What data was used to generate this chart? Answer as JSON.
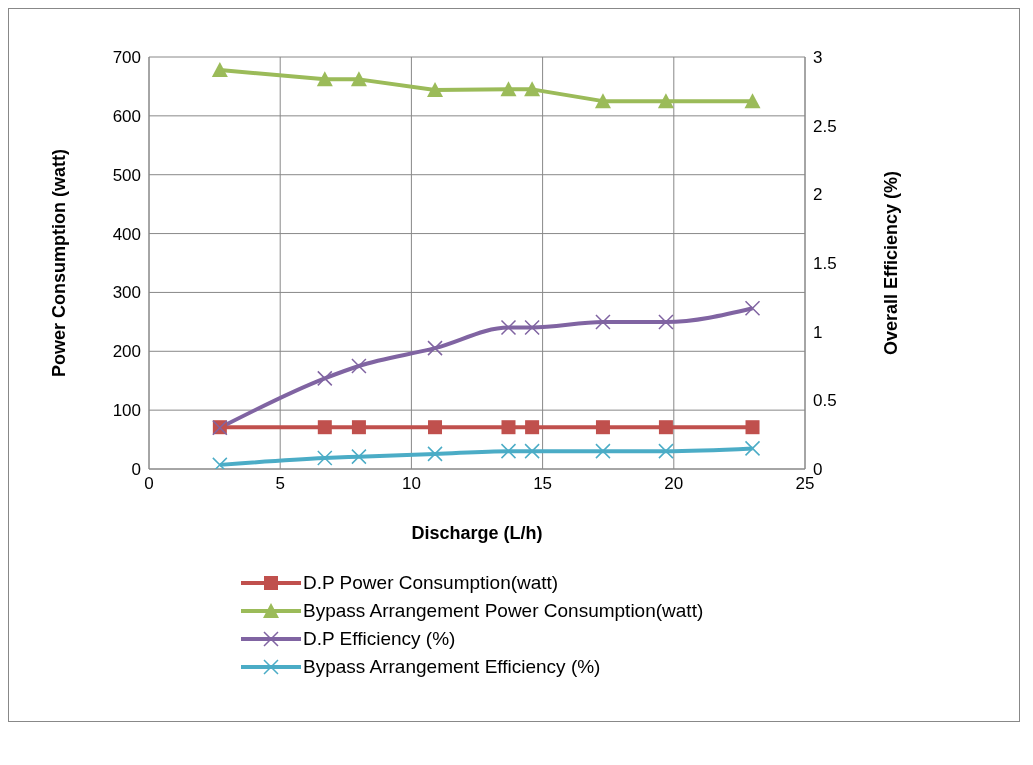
{
  "chart_data": {
    "type": "line",
    "xlabel": "Discharge (L/h)",
    "ylabel": "Power Consumption (watt)",
    "y2label": "Overall  Efficiency (%)",
    "x": [
      2.7,
      6.7,
      8,
      10.9,
      13.7,
      14.6,
      17.3,
      19.7,
      23
    ],
    "xlim": [
      0,
      25
    ],
    "xticks": [
      0,
      5,
      10,
      15,
      20,
      25
    ],
    "ylim": [
      0,
      700
    ],
    "yticks": [
      0,
      100,
      200,
      300,
      400,
      500,
      600,
      700
    ],
    "y2lim": [
      0,
      3
    ],
    "y2ticks": [
      0,
      0.5,
      1,
      1.5,
      2,
      2.5,
      3
    ],
    "grid": true,
    "legend": "bottom",
    "line_style": "solid",
    "series": [
      {
        "name": "D.P Power Consumption(watt)",
        "color": "#c0504d",
        "marker": "square",
        "values": [
          71,
          71,
          71,
          71,
          71,
          71,
          71,
          71,
          71
        ]
      },
      {
        "name": "Bypass Arrangement  Power Consumption(watt)",
        "color": "#9bbb59",
        "marker": "triangle",
        "values": [
          678,
          662,
          662,
          644,
          645,
          645,
          625,
          625,
          625
        ]
      },
      {
        "name": "D.P Efficiency (%)",
        "color": "#8064a2",
        "marker": "cross",
        "axis": "y2",
        "values": [
          0.3,
          0.66,
          0.75,
          0.88,
          1.03,
          1.03,
          1.07,
          1.07,
          1.17
        ]
      },
      {
        "name": "Bypass Arrangement Efficiency (%)",
        "color": "#4bacc6",
        "marker": "cross",
        "axis": "y2",
        "values": [
          0.03,
          0.08,
          0.09,
          0.11,
          0.13,
          0.13,
          0.13,
          0.13,
          0.15
        ]
      }
    ]
  }
}
